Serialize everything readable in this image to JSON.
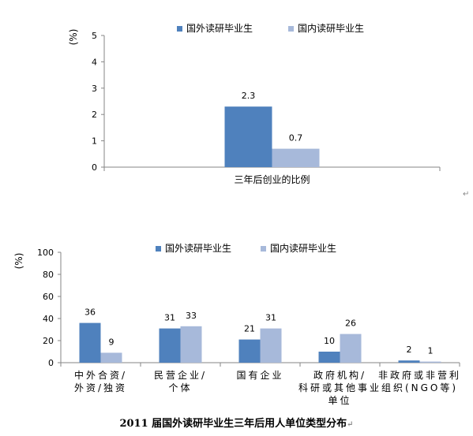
{
  "chart_data": [
    {
      "type": "bar",
      "categories": [
        "三年后创业的比例"
      ],
      "series": [
        {
          "name": "国外读研毕业生",
          "values": [
            2.3
          ],
          "color": "#4F81BD"
        },
        {
          "name": "国内读研毕业生",
          "values": [
            0.7
          ],
          "color": "#A7B9DA"
        }
      ],
      "ylabel": "%",
      "ylim": [
        0,
        5
      ],
      "yticks": [
        0,
        1,
        2,
        3,
        4,
        5
      ],
      "data_labels": [
        [
          "2.3"
        ],
        [
          "0.7"
        ]
      ],
      "legend_position": "top",
      "grid": false
    },
    {
      "type": "bar",
      "categories": [
        [
          "中外合资/",
          "外资/独资"
        ],
        [
          "民营企业/",
          "个体"
        ],
        [
          "国有企业"
        ],
        [
          "政府机构/",
          "科研或其他事业",
          "单位"
        ],
        [
          "非政府或非营利",
          "组织(NGO等)"
        ]
      ],
      "series": [
        {
          "name": "国外读研毕业生",
          "values": [
            36,
            31,
            21,
            10,
            2
          ],
          "color": "#4F81BD"
        },
        {
          "name": "国内读研毕业生",
          "values": [
            9,
            33,
            31,
            26,
            1
          ],
          "color": "#A7B9DA"
        }
      ],
      "ylabel": "%",
      "ylim": [
        0,
        100
      ],
      "yticks": [
        0,
        20,
        40,
        60,
        80,
        100
      ],
      "legend_position": "top",
      "grid": false
    }
  ],
  "caption": "2011 届国外读研毕业生三年后用人单位类型分布",
  "para_mark": "↵"
}
